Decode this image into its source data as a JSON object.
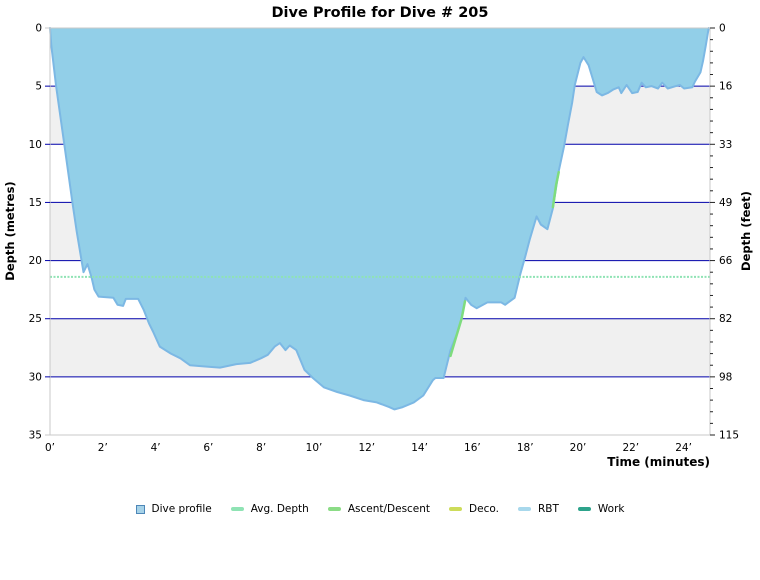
{
  "title": "Dive Profile for Dive # 205",
  "axes": {
    "x": {
      "label": "Time (minutes)",
      "tick_labels": [
        "0’",
        "2’",
        "4’",
        "6’",
        "8’",
        "10’",
        "12’",
        "14’",
        "16’",
        "18’",
        "20’",
        "22’",
        "24’"
      ],
      "tick_step_minutes": 2
    },
    "y_left": {
      "label": "Depth (metres)",
      "tick_labels": [
        "0",
        "5",
        "10",
        "15",
        "20",
        "25",
        "30",
        "35"
      ],
      "tick_step_metres": 5
    },
    "y_right": {
      "label": "Depth (feet)",
      "tick_labels": [
        "0",
        "16",
        "33",
        "49",
        "66",
        "82",
        "98",
        "115"
      ],
      "tick_step_metres": 5
    }
  },
  "legend": [
    {
      "label": "Dive profile",
      "swatch": "square",
      "color": "#a6d2e8",
      "border": "#4d87b8"
    },
    {
      "label": "Avg. Depth",
      "swatch": "dash",
      "color": "#8fe3b4"
    },
    {
      "label": "Ascent/Descent",
      "swatch": "dash",
      "color": "#8bdc86"
    },
    {
      "label": "Deco.",
      "swatch": "dash",
      "color": "#cddc5a"
    },
    {
      "label": "RBT",
      "swatch": "dash",
      "color": "#a8d8ec"
    },
    {
      "label": "Work",
      "swatch": "dash",
      "color": "#2da38b"
    }
  ],
  "colors": {
    "profile_fill": "#92cfe8",
    "profile_stroke": "#7cb8e4",
    "grid": "#0000aa",
    "band": "#f0f0f0",
    "plot_border": "#c8c8c8",
    "avg_depth": "#8fe3b4",
    "ascent_descent": "#7edc7e",
    "tick": "#222222"
  },
  "chart_data": {
    "type": "area",
    "x_max_minutes": 25.0,
    "y_max_metres": 35,
    "y_right_max_feet": 115,
    "grid": "horizontal-only",
    "band_rows_gray": [
      1,
      3,
      5
    ],
    "avg_depth_m": 21.4,
    "max_depth_m": 32.8,
    "profile": [
      [
        0.0,
        0.0
      ],
      [
        0.05,
        1.5
      ],
      [
        0.23,
        5.0
      ],
      [
        0.54,
        10.0
      ],
      [
        0.85,
        15.0
      ],
      [
        1.01,
        17.5
      ],
      [
        1.16,
        19.5
      ],
      [
        1.27,
        21.0
      ],
      [
        1.42,
        20.3
      ],
      [
        1.58,
        21.5
      ],
      [
        1.68,
        22.5
      ],
      [
        1.84,
        23.1
      ],
      [
        2.4,
        23.2
      ],
      [
        2.56,
        23.8
      ],
      [
        2.77,
        23.9
      ],
      [
        2.87,
        23.3
      ],
      [
        3.34,
        23.3
      ],
      [
        3.54,
        24.2
      ],
      [
        3.75,
        25.4
      ],
      [
        3.9,
        26.1
      ],
      [
        4.16,
        27.4
      ],
      [
        4.58,
        28.0
      ],
      [
        4.94,
        28.4
      ],
      [
        5.3,
        29.0
      ],
      [
        5.82,
        29.1
      ],
      [
        6.44,
        29.2
      ],
      [
        7.06,
        28.9
      ],
      [
        7.58,
        28.8
      ],
      [
        7.99,
        28.4
      ],
      [
        8.25,
        28.1
      ],
      [
        8.51,
        27.4
      ],
      [
        8.71,
        27.1
      ],
      [
        8.92,
        27.7
      ],
      [
        9.08,
        27.3
      ],
      [
        9.33,
        27.7
      ],
      [
        9.64,
        29.4
      ],
      [
        9.96,
        30.1
      ],
      [
        10.37,
        30.9
      ],
      [
        10.88,
        31.3
      ],
      [
        11.35,
        31.6
      ],
      [
        11.87,
        32.0
      ],
      [
        12.38,
        32.2
      ],
      [
        12.85,
        32.6
      ],
      [
        13.05,
        32.8
      ],
      [
        13.36,
        32.6
      ],
      [
        13.78,
        32.2
      ],
      [
        14.14,
        31.6
      ],
      [
        14.5,
        30.3
      ],
      [
        14.6,
        30.1
      ],
      [
        14.91,
        30.1
      ],
      [
        15.17,
        27.7
      ],
      [
        15.43,
        26.2
      ],
      [
        15.59,
        25.0
      ],
      [
        15.74,
        23.2
      ],
      [
        15.95,
        23.8
      ],
      [
        16.16,
        24.1
      ],
      [
        16.57,
        23.6
      ],
      [
        17.09,
        23.6
      ],
      [
        17.24,
        23.8
      ],
      [
        17.6,
        23.2
      ],
      [
        17.81,
        21.2
      ],
      [
        18.02,
        19.5
      ],
      [
        18.17,
        18.2
      ],
      [
        18.43,
        16.2
      ],
      [
        18.59,
        16.9
      ],
      [
        18.84,
        17.3
      ],
      [
        19.05,
        15.5
      ],
      [
        19.26,
        12.4
      ],
      [
        19.47,
        10.2
      ],
      [
        19.62,
        8.3
      ],
      [
        19.78,
        6.4
      ],
      [
        19.88,
        4.9
      ],
      [
        20.09,
        3.0
      ],
      [
        20.21,
        2.5
      ],
      [
        20.4,
        3.2
      ],
      [
        20.55,
        4.3
      ],
      [
        20.71,
        5.5
      ],
      [
        20.91,
        5.8
      ],
      [
        21.12,
        5.6
      ],
      [
        21.33,
        5.3
      ],
      [
        21.54,
        5.1
      ],
      [
        21.64,
        5.6
      ],
      [
        21.84,
        4.9
      ],
      [
        22.05,
        5.6
      ],
      [
        22.26,
        5.5
      ],
      [
        22.41,
        4.7
      ],
      [
        22.57,
        5.1
      ],
      [
        22.78,
        5.0
      ],
      [
        23.03,
        5.2
      ],
      [
        23.19,
        4.7
      ],
      [
        23.4,
        5.2
      ],
      [
        23.71,
        5.0
      ],
      [
        23.86,
        4.9
      ],
      [
        24.02,
        5.2
      ],
      [
        24.33,
        5.1
      ],
      [
        24.43,
        4.6
      ],
      [
        24.64,
        3.8
      ],
      [
        24.74,
        2.8
      ],
      [
        24.84,
        1.5
      ],
      [
        24.95,
        0.0
      ]
    ],
    "ascent_descent_segments": [
      [
        [
          15.17,
          28.2
        ],
        [
          15.38,
          26.6
        ],
        [
          15.59,
          25.0
        ],
        [
          15.72,
          23.5
        ]
      ],
      [
        [
          19.05,
          15.4
        ],
        [
          19.17,
          13.5
        ],
        [
          19.27,
          12.4
        ]
      ]
    ]
  }
}
